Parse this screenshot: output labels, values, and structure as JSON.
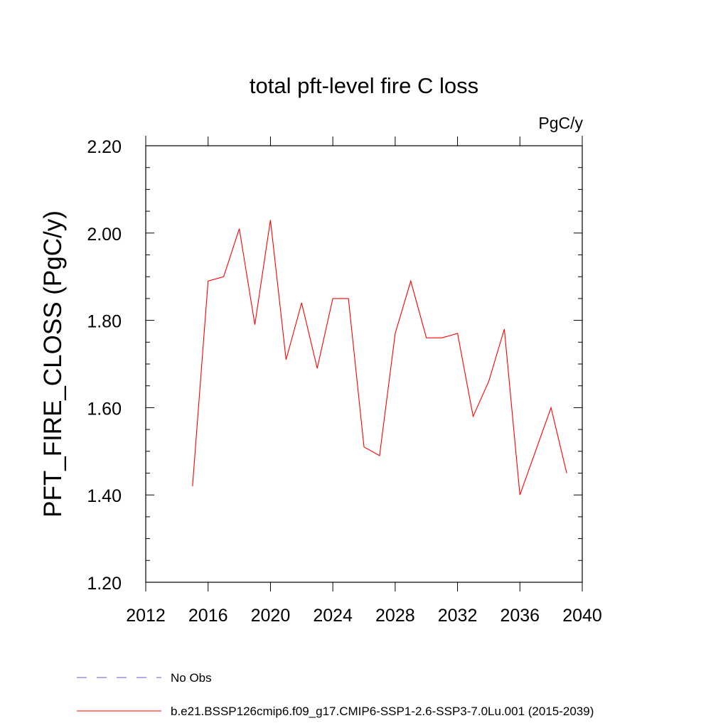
{
  "chart_data": {
    "type": "line",
    "title": "total pft-level fire C loss",
    "units_label": "PgC/y",
    "ylabel": "PFT_FIRE_CLOSS  (PgC/y)",
    "xlabel": "",
    "xlim": [
      2012,
      2040
    ],
    "ylim": [
      1.2,
      2.2
    ],
    "x_ticks": [
      2012,
      2016,
      2020,
      2024,
      2028,
      2032,
      2036,
      2040
    ],
    "y_ticks": [
      "1.20",
      "1.40",
      "1.60",
      "1.80",
      "2.00",
      "2.20"
    ],
    "grid": false,
    "legend_position": "bottom",
    "series": [
      {
        "name": "b.e21.BSSP126cmip6.f09_g17.CMIP6-SSP1-2.6-SSP3-7.0Lu.001 (2015-2039)",
        "color": "#ff0000",
        "style": "solid",
        "x": [
          2015,
          2016,
          2017,
          2018,
          2019,
          2020,
          2021,
          2022,
          2023,
          2024,
          2025,
          2026,
          2027,
          2028,
          2029,
          2030,
          2031,
          2032,
          2033,
          2034,
          2035,
          2036,
          2037,
          2038,
          2039
        ],
        "values": [
          1.42,
          1.89,
          1.9,
          2.01,
          1.79,
          2.03,
          1.71,
          1.84,
          1.69,
          1.85,
          1.85,
          1.51,
          1.49,
          1.77,
          1.89,
          1.76,
          1.76,
          1.77,
          1.58,
          1.66,
          1.78,
          1.4,
          1.5,
          1.6,
          1.45
        ]
      },
      {
        "name": "No Obs",
        "color": "#6a5acd",
        "style": "dashed",
        "x": [],
        "values": []
      }
    ],
    "legend": [
      {
        "label": "No Obs",
        "color": "#6a5acd",
        "style": "dashed"
      },
      {
        "label": "b.e21.BSSP126cmip6.f09_g17.CMIP6-SSP1-2.6-SSP3-7.0Lu.001 (2015-2039)",
        "color": "#ff0000",
        "style": "solid"
      }
    ]
  }
}
